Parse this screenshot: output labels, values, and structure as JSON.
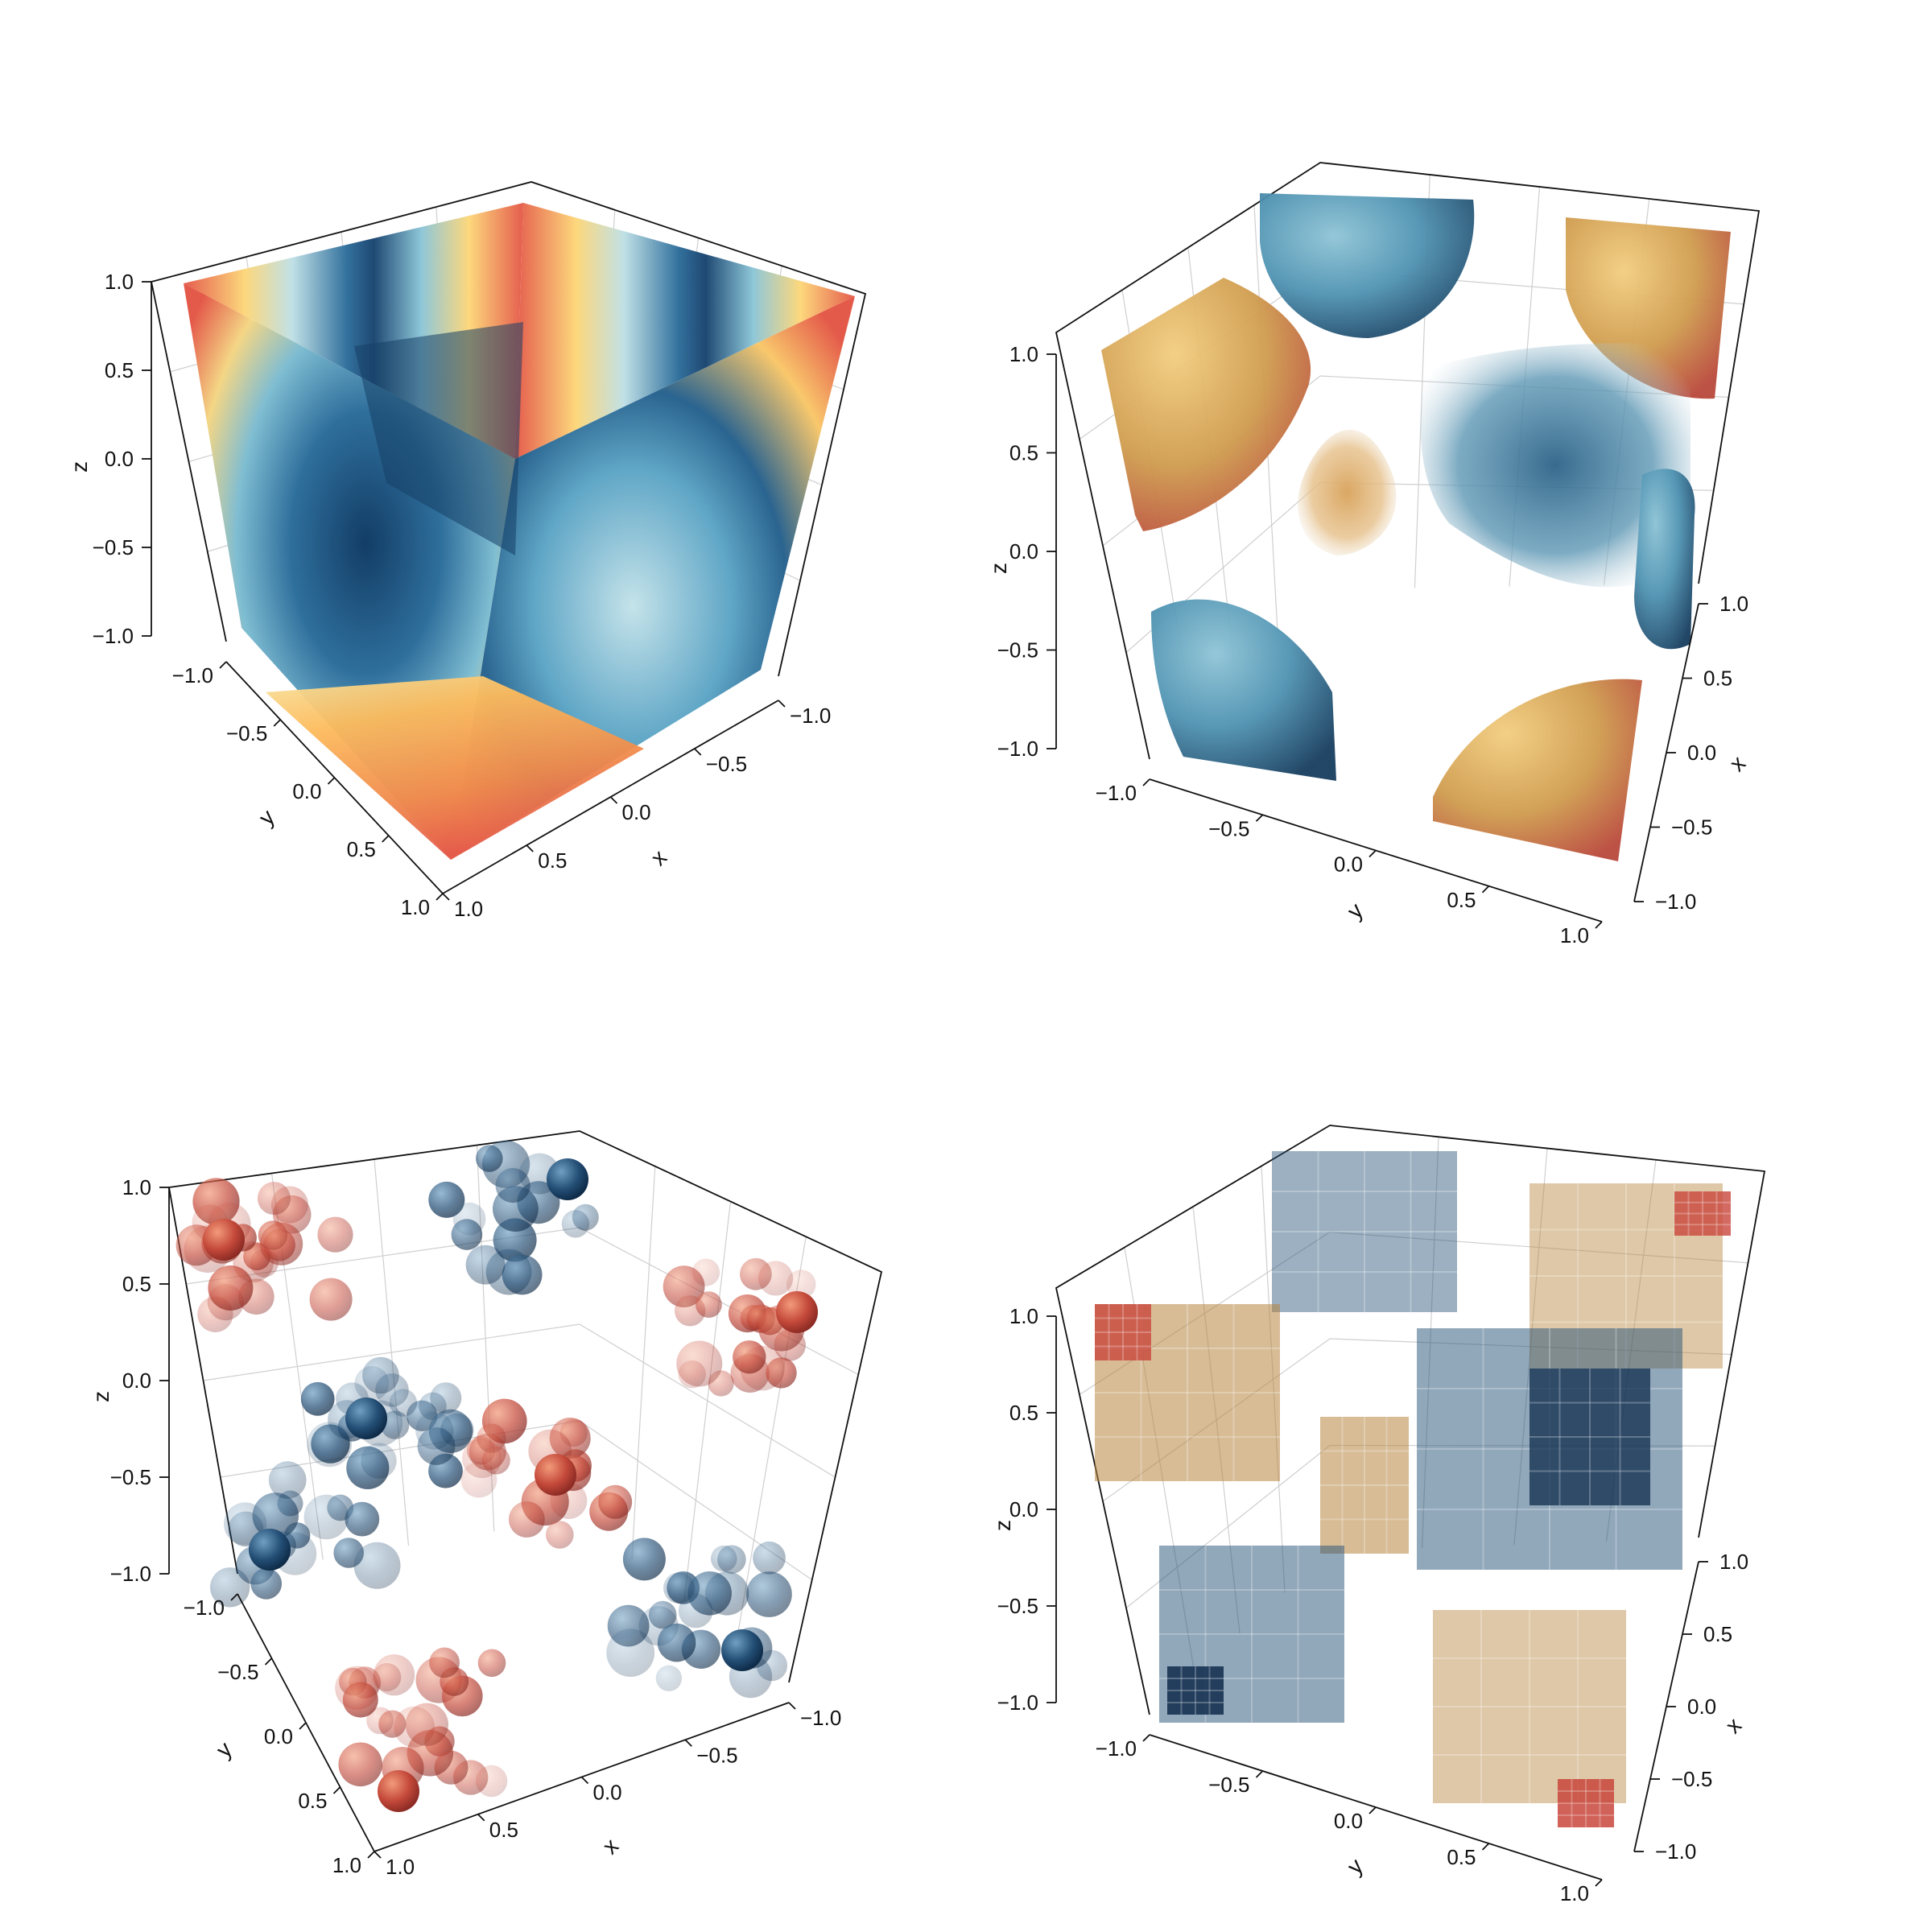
{
  "chart_data": [
    {
      "panel": "top-left",
      "type": "volume-contour-slices",
      "field": "sin(pi*x)*sin(pi*y)*sin(pi*z) style scalar field on cube",
      "title": "",
      "xlabel": "x",
      "ylabel": "y",
      "zlabel": "z",
      "xlim": [
        -1.0,
        1.0
      ],
      "ylim": [
        -1.0,
        1.0
      ],
      "zlim": [
        -1.0,
        1.0
      ],
      "x_ticks": [
        "−1.0",
        "−0.5",
        "0.0",
        "0.5",
        "1.0"
      ],
      "y_ticks": [
        "−1.0",
        "−0.5",
        "0.0",
        "0.5",
        "1.0"
      ],
      "z_ticks": [
        "−1.0",
        "−0.5",
        "0.0",
        "0.5",
        "1.0"
      ],
      "colormap": [
        "#0f3b64",
        "#2f6f9c",
        "#6fb3cc",
        "#e9f3ea",
        "#fdd77a",
        "#f5a350",
        "#e45a4a"
      ],
      "grid": true
    },
    {
      "panel": "top-right",
      "type": "isosurface",
      "xlabel": "x",
      "ylabel": "y",
      "zlabel": "z",
      "xlim": [
        -1.0,
        1.0
      ],
      "ylim": [
        -1.0,
        1.0
      ],
      "zlim": [
        -1.0,
        1.0
      ],
      "x_ticks": [
        "−1.0",
        "−0.5",
        "0.0",
        "0.5",
        "1.0"
      ],
      "y_ticks": [
        "−1.0",
        "−0.5",
        "0.0",
        "0.5",
        "1.0"
      ],
      "z_ticks": [
        "−1.0",
        "−0.5",
        "0.0",
        "0.5",
        "1.0"
      ],
      "colors": {
        "negative": "#3d7fa1",
        "positive": "#d9a552",
        "extreme_neg": "#173d5e",
        "extreme_pos": "#c0443a"
      },
      "grid": true
    },
    {
      "panel": "bottom-left",
      "type": "scatter3d-spheres",
      "xlabel": "x",
      "ylabel": "y",
      "zlabel": "z",
      "xlim": [
        -1.0,
        1.0
      ],
      "ylim": [
        -1.0,
        1.0
      ],
      "zlim": [
        -1.0,
        1.0
      ],
      "x_ticks": [
        "−1.0",
        "−0.5",
        "0.0",
        "0.5",
        "1.0"
      ],
      "y_ticks": [
        "−1.0",
        "−0.5",
        "0.0",
        "0.5",
        "1.0"
      ],
      "z_ticks": [
        "−1.0",
        "−0.5",
        "0.0",
        "0.5",
        "1.0"
      ],
      "colors": {
        "negative": "#1e4a70",
        "positive": "#c4623b"
      },
      "grid": true
    },
    {
      "panel": "bottom-right",
      "type": "voxels",
      "xlabel": "x",
      "ylabel": "y",
      "zlabel": "z",
      "xlim": [
        -1.0,
        1.0
      ],
      "ylim": [
        -1.0,
        1.0
      ],
      "zlim": [
        -1.0,
        1.0
      ],
      "x_ticks": [
        "−1.0",
        "−0.5",
        "0.0",
        "0.5",
        "1.0"
      ],
      "y_ticks": [
        "−1.0",
        "−0.5",
        "0.0",
        "0.5",
        "1.0"
      ],
      "z_ticks": [
        "−1.0",
        "−0.5",
        "0.0",
        "0.5",
        "1.0"
      ],
      "colors": {
        "negative": "#244f76",
        "positive": "#b7853f",
        "extreme_pos": "#c9463c"
      },
      "grid": true
    }
  ]
}
